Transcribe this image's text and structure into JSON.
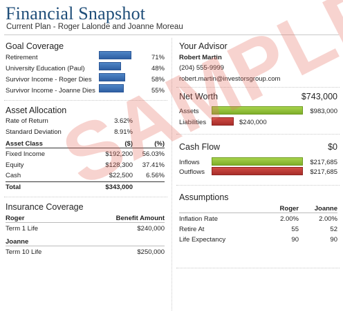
{
  "header": {
    "title": "Financial Snapshot",
    "subtitle": "Current Plan - Roger Lalonde and Joanne Moreau"
  },
  "goal_coverage": {
    "title": "Goal Coverage",
    "items": [
      {
        "label": "Retirement",
        "percent": "71%",
        "fraction": 0.71
      },
      {
        "label": "University Education (Paul)",
        "percent": "48%",
        "fraction": 0.48
      },
      {
        "label": "Survivor Income - Roger Dies",
        "percent": "58%",
        "fraction": 0.58
      },
      {
        "label": "Survivor Income - Joanne Dies",
        "percent": "55%",
        "fraction": 0.55
      }
    ]
  },
  "asset_allocation": {
    "title": "Asset Allocation",
    "rate_of_return_label": "Rate of Return",
    "rate_of_return_value": "3.62%",
    "std_dev_label": "Standard Deviation",
    "std_dev_value": "8.91%",
    "col_class": "Asset Class",
    "col_amount": "($)",
    "col_pct": "(%)",
    "rows": [
      {
        "label": "Fixed Income",
        "amount": "$192,200",
        "pct": "56.03%"
      },
      {
        "label": "Equity",
        "amount": "$128,300",
        "pct": "37.41%"
      },
      {
        "label": "Cash",
        "amount": "$22,500",
        "pct": "6.56%"
      }
    ],
    "total_label": "Total",
    "total_value": "$343,000"
  },
  "insurance": {
    "title": "Insurance Coverage",
    "col_benefit": "Benefit Amount",
    "people": [
      {
        "name": "Roger",
        "policy": "Term 1 Life",
        "amount": "$240,000"
      },
      {
        "name": "Joanne",
        "policy": "Term 10 Life",
        "amount": "$250,000"
      }
    ]
  },
  "advisor": {
    "title": "Your Advisor",
    "name": "Robert Martin",
    "phone": "(204) 555-9999",
    "email": "robert.martin@investorsgroup.com"
  },
  "net_worth": {
    "title": "Net Worth",
    "value": "$743,000",
    "assets_label": "Assets",
    "assets_value": "$983,000",
    "assets_fraction": 1.0,
    "liabilities_label": "Liabilities",
    "liabilities_value": "$240,000",
    "liabilities_fraction": 0.244
  },
  "cash_flow": {
    "title": "Cash Flow",
    "value": "$0",
    "inflows_label": "Inflows",
    "inflows_value": "$217,685",
    "inflows_fraction": 1.0,
    "outflows_label": "Outflows",
    "outflows_value": "$217,685",
    "outflows_fraction": 1.0
  },
  "assumptions": {
    "title": "Assumptions",
    "col_roger": "Roger",
    "col_joanne": "Joanne",
    "rows": [
      {
        "label": "Inflation Rate",
        "roger": "2.00%",
        "joanne": "2.00%"
      },
      {
        "label": "Retire At",
        "roger": "55",
        "joanne": "52"
      },
      {
        "label": "Life Expectancy",
        "roger": "90",
        "joanne": "90"
      }
    ]
  },
  "watermark": "SAMPLE",
  "colors": {
    "title_blue": "#1f4e79",
    "bar_blue": "#2e5fa3",
    "bar_green": "#8fbc35",
    "bar_red": "#b53832",
    "watermark": "#e66e5f"
  }
}
